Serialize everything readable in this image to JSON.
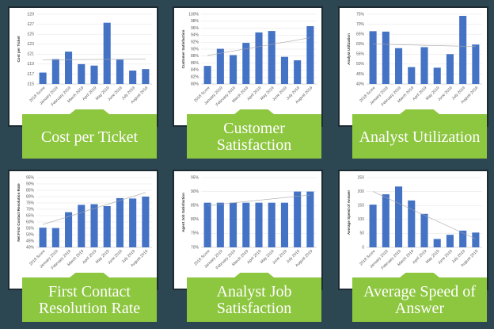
{
  "chart_data": [
    {
      "type": "bar",
      "title": "Cost per Ticket",
      "ylabel": "Cost per Ticket",
      "categories": [
        "2018 Score",
        "January 2019",
        "February 2019",
        "March 2019",
        "April 2019",
        "May 2019",
        "June 2019",
        "July 2019",
        "August 2019"
      ],
      "values": [
        17.3,
        20.0,
        21.5,
        19.0,
        18.7,
        27.3,
        19.9,
        17.7,
        18.0
      ],
      "color": "#4472c4",
      "ylim": [
        15,
        29
      ],
      "yticks": [
        {
          "value": 15,
          "label": "£15"
        },
        {
          "value": 17,
          "label": "£17"
        },
        {
          "value": 19,
          "label": "£19"
        },
        {
          "value": 21,
          "label": "£21"
        },
        {
          "value": 23,
          "label": "£23"
        },
        {
          "value": 25,
          "label": "£25"
        },
        {
          "value": 27,
          "label": "£27"
        },
        {
          "value": 29,
          "label": "£29"
        }
      ],
      "grid": true,
      "trendline": true
    },
    {
      "type": "bar",
      "title": "Customer Satisfaction",
      "ylabel": "Customer Satisfaction",
      "categories": [
        "2018 Score",
        "January 2019",
        "February 2019",
        "March 2019",
        "April 2019",
        "May 2019",
        "June 2019",
        "July 2019",
        "August 2019"
      ],
      "values": [
        85.2,
        90.1,
        88.3,
        91.8,
        94.8,
        95.2,
        87.8,
        86.8,
        96.6
      ],
      "color": "#4472c4",
      "ylim": [
        80,
        100
      ],
      "yticks": [
        {
          "value": 80,
          "label": "80%"
        },
        {
          "value": 82,
          "label": "82%"
        },
        {
          "value": 84,
          "label": "84%"
        },
        {
          "value": 86,
          "label": "86%"
        },
        {
          "value": 88,
          "label": "88%"
        },
        {
          "value": 90,
          "label": "90%"
        },
        {
          "value": 92,
          "label": "92%"
        },
        {
          "value": 94,
          "label": "94%"
        },
        {
          "value": 96,
          "label": "96%"
        },
        {
          "value": 98,
          "label": "98%"
        },
        {
          "value": 100,
          "label": "100%"
        }
      ],
      "grid": true,
      "trendline": true
    },
    {
      "type": "bar",
      "title": "Analyst Utilization",
      "ylabel": "Analyst Utilization",
      "categories": [
        "2018 Score",
        "January 2019",
        "February 2019",
        "March 2019",
        "April 2019",
        "May 2019",
        "June 2019",
        "July 2019",
        "August 2019"
      ],
      "values": [
        66.5,
        66.3,
        58.0,
        48.5,
        58.5,
        48.2,
        55.0,
        74.2,
        59.8
      ],
      "color": "#4472c4",
      "ylim": [
        40,
        75
      ],
      "yticks": [
        {
          "value": 40,
          "label": "40%"
        },
        {
          "value": 45,
          "label": "45%"
        },
        {
          "value": 50,
          "label": "50%"
        },
        {
          "value": 55,
          "label": "55%"
        },
        {
          "value": 60,
          "label": "60%"
        },
        {
          "value": 65,
          "label": "65%"
        },
        {
          "value": 70,
          "label": "70%"
        },
        {
          "value": 75,
          "label": "75%"
        }
      ],
      "grid": true,
      "trendline": true
    },
    {
      "type": "bar",
      "title": "First Contact Resolution Rate",
      "ylabel": "Net First Contact Resolution Rate",
      "categories": [
        "2018 Score",
        "January 2019",
        "February 2019",
        "March 2019",
        "April 2019",
        "May 2019",
        "June 2019",
        "July 2019",
        "August 2019"
      ],
      "values": [
        55.5,
        55.2,
        67.7,
        73.5,
        74.0,
        72.5,
        78.8,
        78.5,
        80.0
      ],
      "color": "#4472c4",
      "ylim": [
        40,
        95
      ],
      "yticks": [
        {
          "value": 40,
          "label": "40%"
        },
        {
          "value": 45,
          "label": "45%"
        },
        {
          "value": 50,
          "label": "50%"
        },
        {
          "value": 55,
          "label": "55%"
        },
        {
          "value": 60,
          "label": "60%"
        },
        {
          "value": 65,
          "label": "65%"
        },
        {
          "value": 70,
          "label": "70%"
        },
        {
          "value": 75,
          "label": "75%"
        },
        {
          "value": 80,
          "label": "80%"
        },
        {
          "value": 85,
          "label": "85%"
        },
        {
          "value": 90,
          "label": "90%"
        },
        {
          "value": 95,
          "label": "95%"
        }
      ],
      "grid": true,
      "trendline": true
    },
    {
      "type": "bar",
      "title": "Analyst Job Satisfaction",
      "ylabel": "Agent Job Satisfaction",
      "categories": [
        "2018 Score",
        "January 2019",
        "February 2019",
        "March 2019",
        "April 2019",
        "May 2019",
        "June 2019",
        "July 2019",
        "August 2019"
      ],
      "values": [
        86,
        86,
        86,
        86,
        86,
        86,
        86,
        90,
        90
      ],
      "color": "#4472c4",
      "ylim": [
        70,
        95
      ],
      "yticks": [
        {
          "value": 70,
          "label": "70%"
        },
        {
          "value": 75,
          "label": "75%"
        },
        {
          "value": 80,
          "label": "80%"
        },
        {
          "value": 85,
          "label": "85%"
        },
        {
          "value": 90,
          "label": "90%"
        },
        {
          "value": 95,
          "label": "95%"
        }
      ],
      "grid": true,
      "trendline": true
    },
    {
      "type": "bar",
      "title": "Average Speed of Answer",
      "ylabel": "Average Speed of Answer",
      "categories": [
        "2018 Score",
        "January 2019",
        "February 2019",
        "March 2019",
        "April 2019",
        "May 2019",
        "June 2019",
        "July 2019",
        "August 2019"
      ],
      "values": [
        153,
        190,
        218,
        168,
        120,
        30,
        45,
        60,
        53
      ],
      "color": "#4472c4",
      "ylim": [
        0,
        250
      ],
      "yticks": [
        0,
        50,
        100,
        150,
        200,
        250
      ],
      "grid": true,
      "trendline": true
    }
  ]
}
